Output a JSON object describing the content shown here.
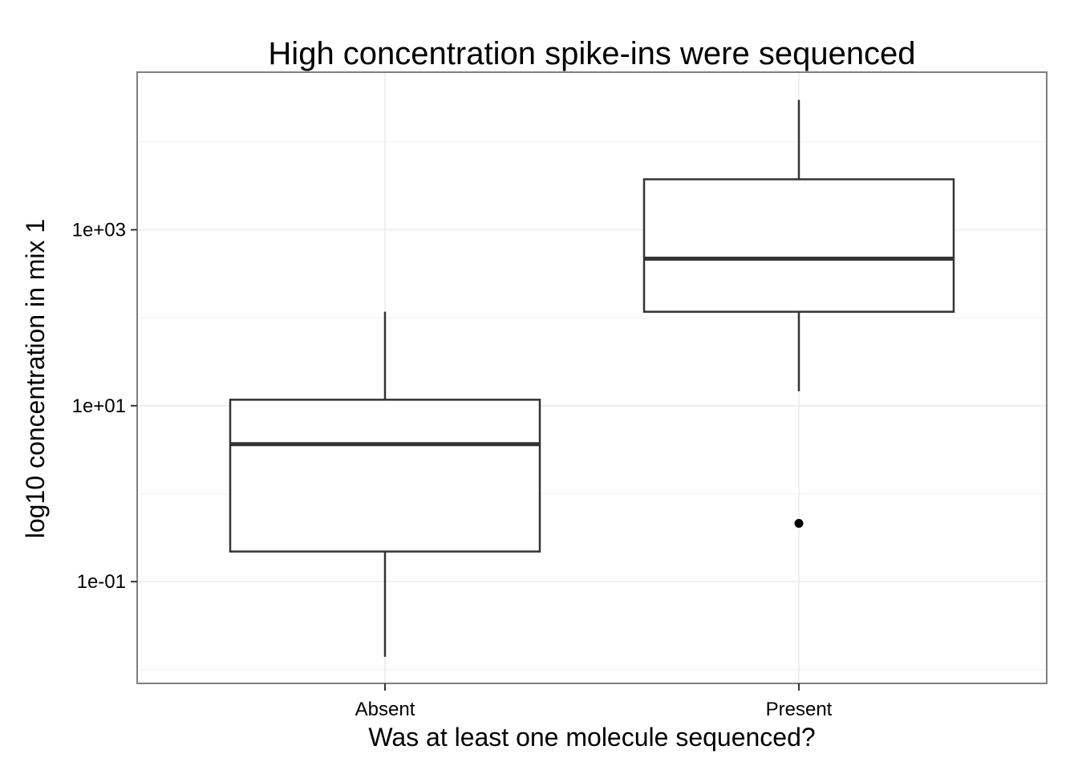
{
  "chart_data": {
    "type": "boxplot",
    "title": "High concentration spike-ins were sequenced",
    "xlabel": "Was at least one molecule sequenced?",
    "ylabel": "log10 concentration in mix 1",
    "y_scale": "log10",
    "ylim": [
      0.008,
      70000
    ],
    "grid": true,
    "categories": [
      "Absent",
      "Present"
    ],
    "y_ticks": [
      {
        "value": 0.1,
        "label": "1e-01"
      },
      {
        "value": 10,
        "label": "1e+01"
      },
      {
        "value": 1000,
        "label": "1e+03"
      }
    ],
    "boxes": [
      {
        "category": "Absent",
        "whisker_low": 0.014,
        "q1": 0.22,
        "median": 3.66,
        "q3": 11.7,
        "whisker_high": 117,
        "outliers": []
      },
      {
        "category": "Present",
        "whisker_low": 14.6,
        "q1": 117,
        "median": 469,
        "q3": 3750,
        "whisker_high": 30000,
        "outliers": [
          0.46
        ]
      }
    ]
  },
  "colors": {
    "panel_border": "#7f7f7f",
    "grid_major": "#ebebeb",
    "grid_minor": "#f5f5f5",
    "box_line": "#333333",
    "box_fill": "#ffffff",
    "outlier": "#000000"
  }
}
